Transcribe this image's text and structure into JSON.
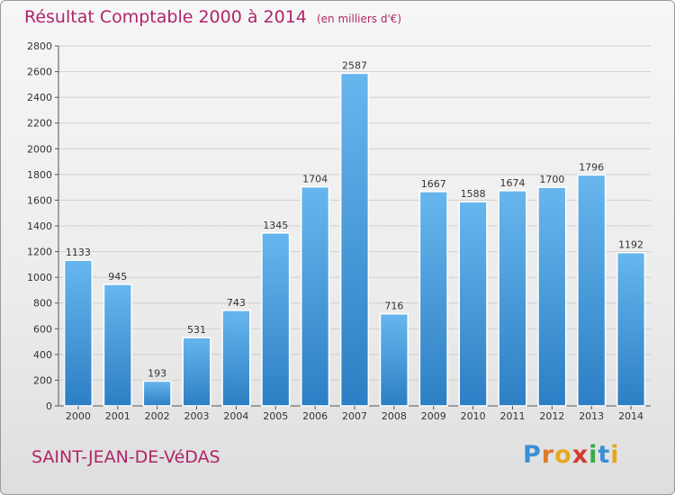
{
  "title": "Résultat Comptable 2000 à 2014",
  "subtitle": "(en milliers d'€)",
  "city": "SAINT-JEAN-DE-VéDAS",
  "logo": {
    "text": "Proxiti",
    "letters": [
      {
        "char": "P",
        "color": "#3a8fd6"
      },
      {
        "char": "r",
        "color": "#e07b2a"
      },
      {
        "char": "o",
        "color": "#e5a91f"
      },
      {
        "char": "x",
        "color": "#d43b2f"
      },
      {
        "char": "i",
        "color": "#3aaa4a"
      },
      {
        "char": "t",
        "color": "#3a8fd6"
      },
      {
        "char": "i",
        "color": "#e5a91f"
      }
    ]
  },
  "colors": {
    "bar_light": "#67b6ee",
    "bar_dark": "#2c7fc4",
    "grid": "#cfcfcf",
    "axis": "#555555",
    "text": "#333333",
    "title": "#b0256a"
  },
  "chart_data": {
    "type": "bar",
    "title": "Résultat Comptable 2000 à 2014",
    "subtitle": "(en milliers d'€)",
    "xlabel": "",
    "ylabel": "",
    "categories": [
      "2000",
      "2001",
      "2002",
      "2003",
      "2004",
      "2005",
      "2006",
      "2007",
      "2008",
      "2009",
      "2010",
      "2011",
      "2012",
      "2013",
      "2014"
    ],
    "values": [
      1133,
      945,
      193,
      531,
      743,
      1345,
      1704,
      2587,
      716,
      1667,
      1588,
      1674,
      1700,
      1796,
      1192
    ],
    "ylim": [
      0,
      2800
    ],
    "yticks": [
      0,
      200,
      400,
      600,
      800,
      1000,
      1200,
      1400,
      1600,
      1800,
      2000,
      2200,
      2400,
      2600,
      2800
    ],
    "grid": true,
    "data_labels": true
  }
}
